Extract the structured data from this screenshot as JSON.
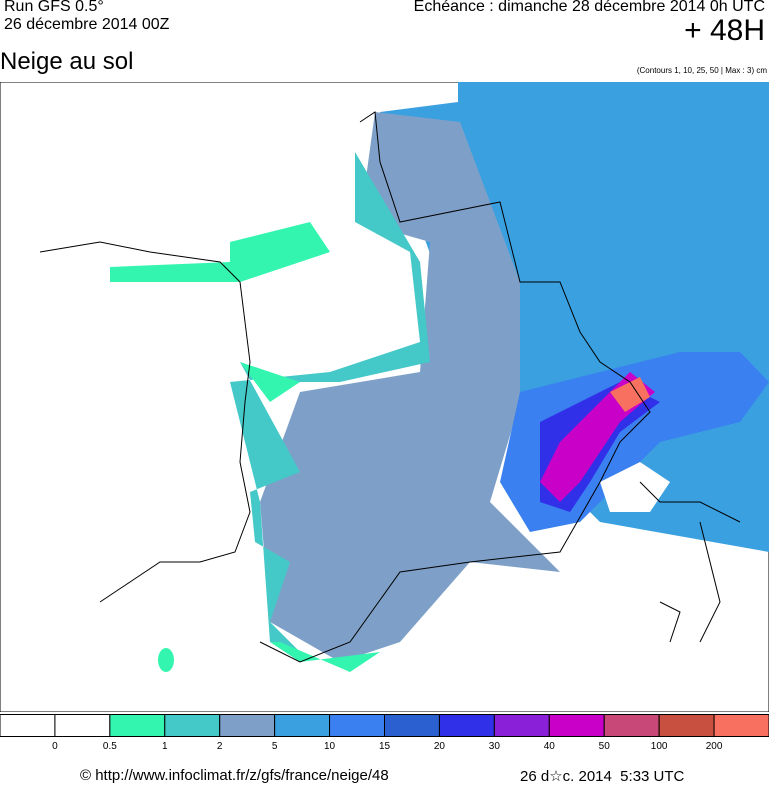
{
  "header": {
    "run": "Run GFS 0.5°",
    "date": "26 décembre 2014 00Z",
    "echeance": "Echéance : dimanche 28 décembre 2014 0h UTC",
    "lead": "+ 48H"
  },
  "title": "Neige au sol",
  "note": "(Contours 1, 10, 25, 50 | Max : 3) cm",
  "legend": {
    "colors": [
      "#ffffff",
      "#ffffff",
      "#33f5b0",
      "#44c8c8",
      "#7ea0c8",
      "#3aa0e0",
      "#3a80f0",
      "#2a60d0",
      "#3030e8",
      "#8a20d8",
      "#c800c8",
      "#c84878",
      "#c85040",
      "#f87060"
    ],
    "labels": [
      "0",
      "0.5",
      "1",
      "2",
      "5",
      "10",
      "15",
      "20",
      "30",
      "40",
      "50",
      "100",
      "200"
    ]
  },
  "footer": {
    "url": "© http://www.infoclimat.fr/z/gfs/france/neige/48",
    "stamp": "26 d☆c. 2014  5:33 UTC"
  }
}
